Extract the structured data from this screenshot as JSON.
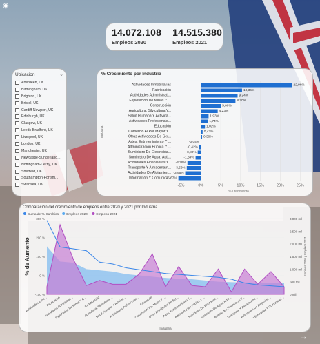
{
  "kpis": [
    {
      "value": "14.072.108",
      "label": "Empleos 2020"
    },
    {
      "value": "14.515.380",
      "label": "Empleos 2021"
    }
  ],
  "slicer": {
    "title": "Ubicacion",
    "items": [
      "Aberdeen, UK",
      "Birmingham, UK",
      "Brighton, UK",
      "Bristol, UK",
      "Cardiff-Newport, UK",
      "Edinburgh, UK",
      "Glasgow, UK",
      "Leeds-Bradford, UK",
      "Liverpool, UK",
      "London, UK",
      "Manchester, UK",
      "Newcastle-Sunderland...",
      "Nottingham-Derby, UK",
      "Sheffield, UK",
      "Southampton-Portsm...",
      "Swansea, UK"
    ]
  },
  "colors": {
    "bar": "#1f6fd1",
    "line": "#3a86e8",
    "area": "#5aaaf0",
    "purple": "#b14fc2",
    "purple_fill": "#c77fd4"
  },
  "chart_data": [
    {
      "type": "bar",
      "title": "% Crecimiento por Industria",
      "xlabel": "% Crecimiento",
      "ylabel": "Industria",
      "categories": [
        "Actividades Inmobiliarias",
        "Fabricación",
        "Actividades Administrati...",
        "Explotación De Minas Y ...",
        "Construcción",
        "Agricultura, Silvicultura Y...",
        "Salud Humana Y Activida...",
        "Actividades Profesionale...",
        "Educación",
        "Comercio Al Por Mayor Y...",
        "Otras Actividades De Ser...",
        "Artes, Entretenimiento Y ...",
        "Administración Pública Y ...",
        "Suministro De Electricida...",
        "Suministro De Agua; Acti...",
        "Actividades Financieras Y...",
        "Transporte Y Almacenam...",
        "Actividades De Alojamien...",
        "Información Y Comunica..."
      ],
      "values": [
        22.96,
        10.36,
        9.24,
        8.7,
        5.0,
        4.23,
        1.93,
        1.74,
        1.02,
        0.43,
        0.3,
        -0.04,
        -0.42,
        -0.8,
        -1.34,
        -3.39,
        -3.56,
        -3.95,
        -5.67
      ],
      "labels": [
        "22,96%",
        "10,36%",
        "9,24%",
        "8,70%",
        "5,00%",
        "4,23%",
        "1,93%",
        "1,74%",
        "1,02%",
        "0,43%",
        "0,30%",
        "-0,04%",
        "-0,42%",
        "-0,80%",
        "-1,34%",
        "-3,39%",
        "-3,56%",
        "-3,95%",
        "-5,67%"
      ],
      "xlim": [
        -7,
        26
      ],
      "ticks": [
        -5,
        0,
        5,
        10,
        15,
        20,
        25
      ],
      "tick_labels": [
        "-5%",
        "0%",
        "5%",
        "10%",
        "15%",
        "20%",
        "25%"
      ]
    },
    {
      "type": "line",
      "title": "Comparación del crecimiento de empleos entre 2020 y 2021 por Industria",
      "xlabel": "Industria",
      "ylabel": "% de Aumento",
      "y2label": "Empleos 2020 y Empleos 2021",
      "legend": [
        "Suma de % Cambios",
        "Empleos 2020",
        "Empleos 2021"
      ],
      "categories": [
        "Actividades Inmo...",
        "Fabricación",
        "Actividades Administrati...",
        "Explotación De Minas Y C...",
        "Construcción",
        "Agricultura, Silvicultura ...",
        "Salud Humana Y Activida...",
        "Actividades Profesionale...",
        "Educación",
        "Comercio Al Por Mayor Y ...",
        "Otras Actividades De Ser...",
        "Artes, Entretenimiento Y...",
        "Administración Pública Y ...",
        "Suministro De Electricida...",
        "Suministro De Agua; Activ...",
        "Actividades Financieras Y...",
        "Transporte Y Almacenami...",
        "Actividades De Alojamien...",
        "Información Y Comunicaci..."
      ],
      "pct": [
        290,
        150,
        140,
        130,
        70,
        60,
        40,
        30,
        20,
        10,
        5,
        0,
        -5,
        -10,
        -20,
        -40,
        -50,
        -55,
        -60
      ],
      "emp2020": [
        1900,
        1300,
        1250,
        1000,
        950,
        900,
        800,
        750,
        700,
        650,
        620,
        600,
        550,
        500,
        480,
        470,
        460,
        450,
        440
      ],
      "emp2021": [
        300,
        2750,
        1400,
        350,
        550,
        400,
        400,
        800,
        1600,
        300,
        1100,
        350,
        300,
        1000,
        100,
        1000,
        400,
        900,
        300
      ],
      "ylim": [
        -100,
        300
      ],
      "yticks": [
        "300 %",
        "200 %",
        "100 %",
        "0 %",
        "-100 %"
      ],
      "y2lim": [
        0,
        3000
      ],
      "y2ticks": [
        "3.000 mil",
        "2.500 mil",
        "2.000 mil",
        "1.500 mil",
        "1.000 mil",
        "500 mil",
        "0 mil"
      ]
    }
  ]
}
